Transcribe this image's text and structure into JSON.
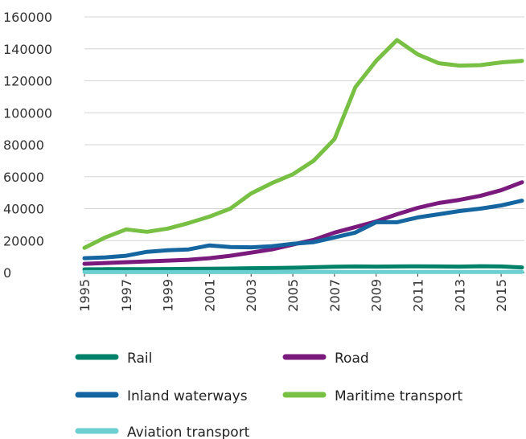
{
  "chart_data": {
    "type": "line",
    "title": "",
    "xlabel": "",
    "ylabel": "",
    "ylim": [
      0,
      160000
    ],
    "y_ticks": [
      "0",
      "20000",
      "40000",
      "60000",
      "80000",
      "100000",
      "120000",
      "140000",
      "160000"
    ],
    "x": [
      1995,
      1996,
      1997,
      1998,
      1999,
      2000,
      2001,
      2002,
      2003,
      2004,
      2005,
      2006,
      2007,
      2008,
      2009,
      2010,
      2011,
      2012,
      2013,
      2014,
      2015,
      2016
    ],
    "x_ticks": [
      "1995",
      "1997",
      "1999",
      "2001",
      "2003",
      "2005",
      "2007",
      "2009",
      "2011",
      "2013",
      "2015"
    ],
    "grid": true,
    "legend_position": "bottom",
    "series": [
      {
        "name": "Rail",
        "color": "#00826a",
        "values": [
          2000,
          2100,
          2100,
          2100,
          2200,
          2300,
          2400,
          2500,
          2700,
          2800,
          3000,
          3300,
          3600,
          3800,
          3700,
          3800,
          3900,
          3800,
          3700,
          4000,
          3800,
          3200
        ]
      },
      {
        "name": "Road",
        "color": "#7a1a7d",
        "values": [
          5500,
          6000,
          6500,
          7000,
          7500,
          8000,
          9000,
          10500,
          12500,
          14500,
          17500,
          20500,
          25000,
          28500,
          32000,
          36500,
          40500,
          43500,
          45500,
          48000,
          51500,
          56500
        ]
      },
      {
        "name": "Inland waterways",
        "color": "#1566a0",
        "values": [
          9000,
          9500,
          10500,
          13000,
          14000,
          14500,
          17000,
          16000,
          15800,
          16500,
          18000,
          19000,
          22000,
          25000,
          31500,
          31500,
          34500,
          36500,
          38500,
          40000,
          42000,
          45000
        ]
      },
      {
        "name": "Maritime transport",
        "color": "#78c043",
        "values": [
          15500,
          22000,
          27000,
          25500,
          27500,
          31000,
          35000,
          40000,
          49500,
          56000,
          61500,
          70000,
          83500,
          116000,
          132500,
          145500,
          136500,
          131000,
          129500,
          129800,
          131500,
          132500
        ]
      },
      {
        "name": "Aviation transport",
        "color": "#6ccfd0",
        "values": [
          300,
          300,
          300,
          300,
          300,
          300,
          300,
          300,
          300,
          300,
          350,
          350,
          350,
          350,
          350,
          350,
          400,
          400,
          400,
          400,
          400,
          400
        ]
      }
    ]
  }
}
